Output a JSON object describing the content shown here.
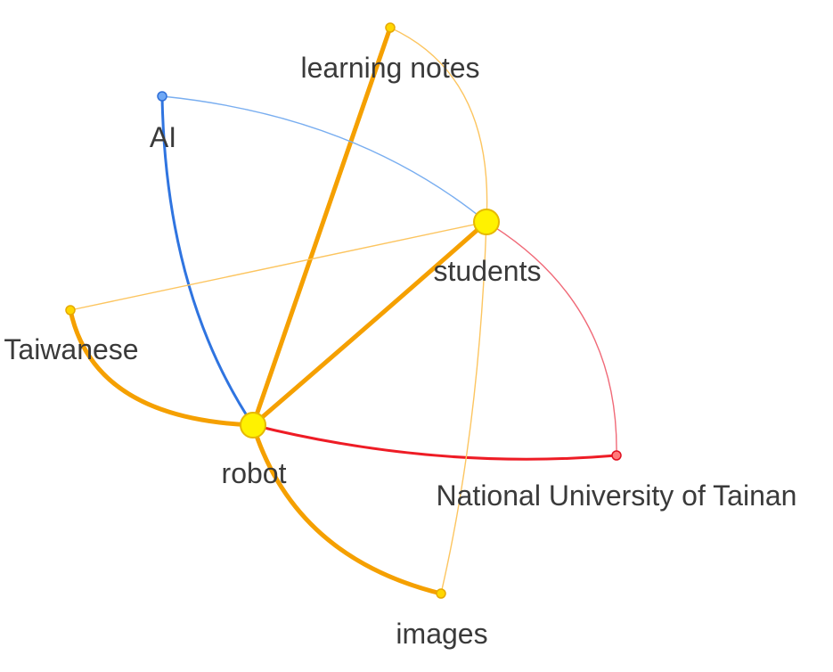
{
  "graph": {
    "nodes": [
      {
        "id": "learning_notes",
        "label": "learning notes",
        "color": "#FFD700",
        "stroke": "#E6A800",
        "major": false
      },
      {
        "id": "ai",
        "label": "AI",
        "color": "#6FA8F5",
        "stroke": "#2F6FD8",
        "major": false
      },
      {
        "id": "students",
        "label": "students",
        "color": "#FFF200",
        "stroke": "#E6B800",
        "major": true
      },
      {
        "id": "taiwanese",
        "label": "Taiwanese",
        "color": "#FFD700",
        "stroke": "#E6A800",
        "major": false
      },
      {
        "id": "robot",
        "label": "robot",
        "color": "#FFF200",
        "stroke": "#E6B800",
        "major": true
      },
      {
        "id": "nut",
        "label": "National University of Tainan",
        "color": "#FF7A7A",
        "stroke": "#E01020",
        "major": false
      },
      {
        "id": "images",
        "label": "images",
        "color": "#FFD700",
        "stroke": "#E6A800",
        "major": false
      }
    ],
    "edges": [
      {
        "from": "robot",
        "to": "learning_notes",
        "color": "#F5A000",
        "weight": "strong"
      },
      {
        "from": "robot",
        "to": "students",
        "color": "#F5A000",
        "weight": "strong"
      },
      {
        "from": "robot",
        "to": "taiwanese",
        "color": "#F5A000",
        "weight": "strong"
      },
      {
        "from": "robot",
        "to": "images",
        "color": "#F5A000",
        "weight": "strong"
      },
      {
        "from": "robot",
        "to": "ai",
        "color": "#2F74E0",
        "weight": "medium"
      },
      {
        "from": "robot",
        "to": "nut",
        "color": "#EE1C25",
        "weight": "medium"
      },
      {
        "from": "students",
        "to": "learning_notes",
        "color": "#FCC560",
        "weight": "light"
      },
      {
        "from": "students",
        "to": "ai",
        "color": "#79AEF0",
        "weight": "light"
      },
      {
        "from": "students",
        "to": "taiwanese",
        "color": "#FCC560",
        "weight": "light"
      },
      {
        "from": "students",
        "to": "images",
        "color": "#FCC560",
        "weight": "light"
      },
      {
        "from": "students",
        "to": "nut",
        "color": "#F06A78",
        "weight": "light"
      }
    ]
  }
}
